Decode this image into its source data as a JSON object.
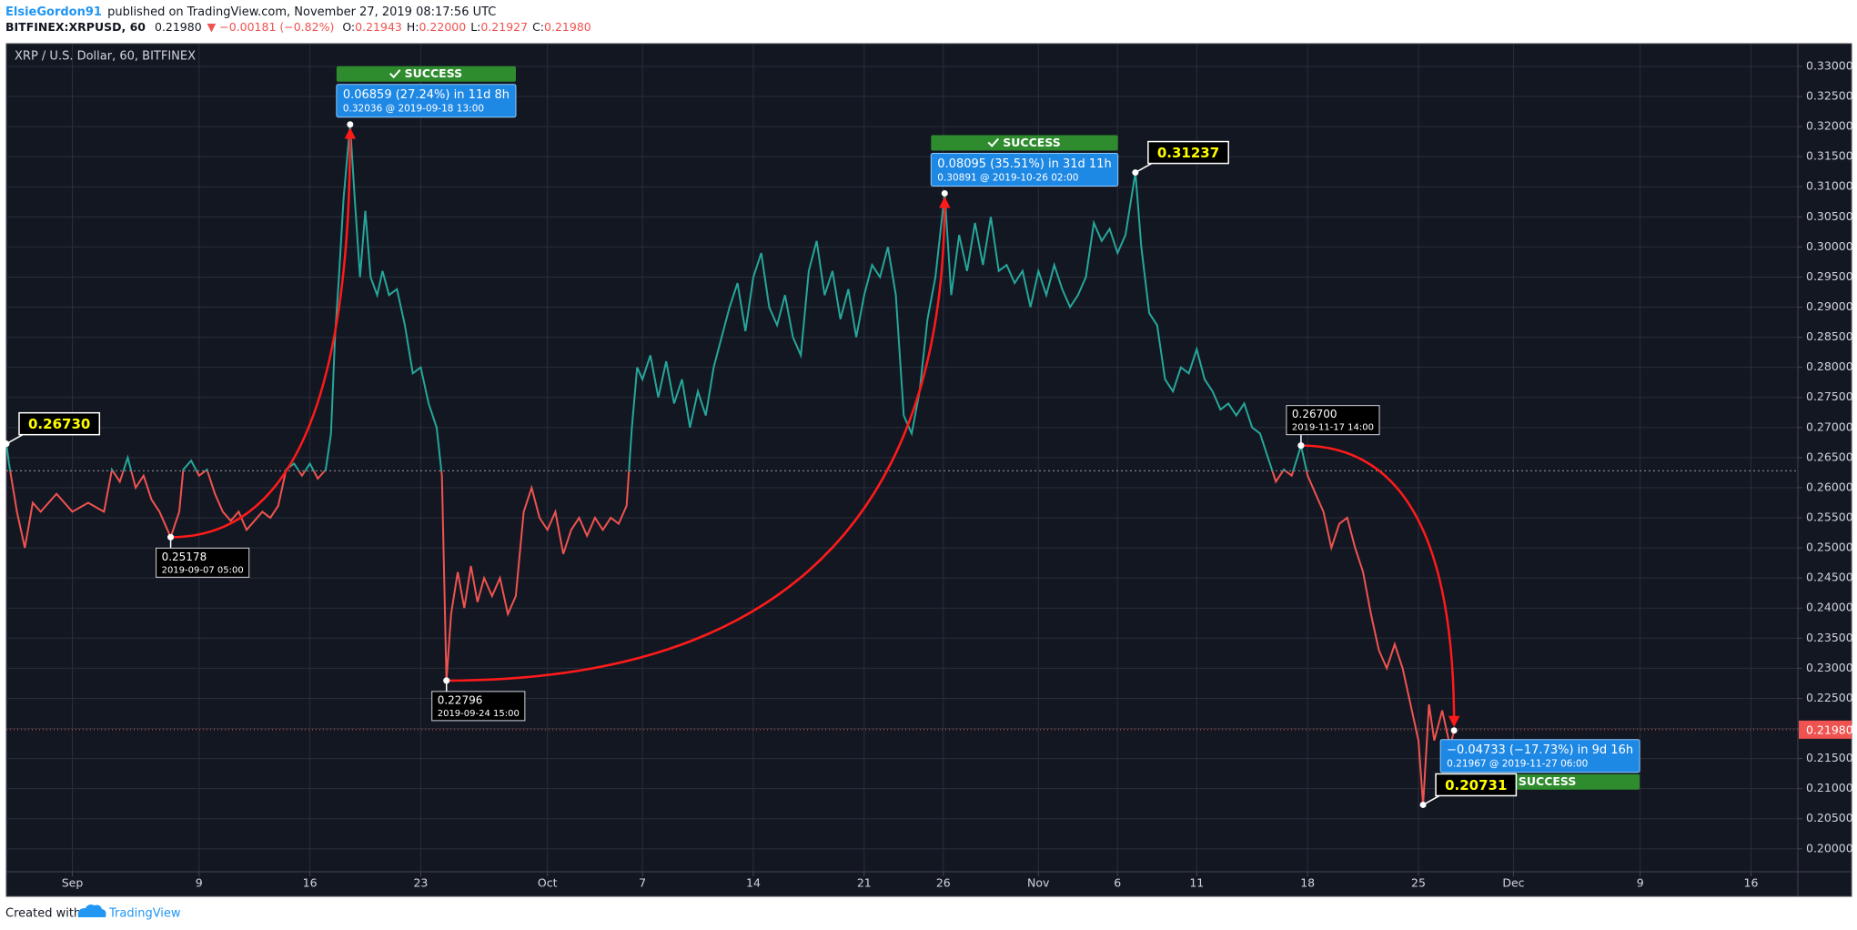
{
  "header": {
    "author": "ElsieGordon91",
    "published": "published on TradingView.com, November 27, 2019 08:17:56 UTC",
    "symbol": "BITFINEX:XRPUSD, 60",
    "last": "0.21980",
    "change": "▼ −0.00181 (−0.82%)",
    "ohlc": [
      {
        "label": "O:",
        "value": "0.21943"
      },
      {
        "label": "H:",
        "value": "0.22000"
      },
      {
        "label": "L:",
        "value": "0.21927"
      },
      {
        "label": "C:",
        "value": "0.21980"
      }
    ]
  },
  "footer": {
    "text": "Created with",
    "brand": "TradingView"
  },
  "chart_data": {
    "type": "line",
    "title": "XRP / U.S. Dollar, 60, BITFINEX",
    "color_above": "#26a69a",
    "color_below": "#ef5350",
    "baseline": 0.2628,
    "grid": true,
    "xlim": [
      "2019-08-27 20:00",
      "2019-12-18 23:00"
    ],
    "xticks": [
      {
        "value": "2019-09-01 00:00",
        "label": "Sep"
      },
      {
        "value": "2019-09-09 00:00",
        "label": "9"
      },
      {
        "value": "2019-09-16 00:00",
        "label": "16"
      },
      {
        "value": "2019-09-23 00:00",
        "label": "23"
      },
      {
        "value": "2019-10-01 00:00",
        "label": "Oct"
      },
      {
        "value": "2019-10-07 00:00",
        "label": "7"
      },
      {
        "value": "2019-10-14 00:00",
        "label": "14"
      },
      {
        "value": "2019-10-21 00:00",
        "label": "21"
      },
      {
        "value": "2019-10-26 00:00",
        "label": "26"
      },
      {
        "value": "2019-11-01 00:00",
        "label": "Nov"
      },
      {
        "value": "2019-11-06 00:00",
        "label": "6"
      },
      {
        "value": "2019-11-11 00:00",
        "label": "11"
      },
      {
        "value": "2019-11-18 00:00",
        "label": "18"
      },
      {
        "value": "2019-11-25 00:00",
        "label": "25"
      },
      {
        "value": "2019-12-01 00:00",
        "label": "Dec"
      },
      {
        "value": "2019-12-09 00:00",
        "label": "9"
      },
      {
        "value": "2019-12-16 00:00",
        "label": "16"
      }
    ],
    "ylim": [
      0.19619,
      0.33317
    ],
    "yticks": [
      {
        "value": 0.2,
        "label": "0.20000"
      },
      {
        "value": 0.205,
        "label": "0.20500"
      },
      {
        "value": 0.21,
        "label": "0.21000"
      },
      {
        "value": 0.215,
        "label": "0.21500"
      },
      {
        "value": 0.22,
        "label": "0.22000"
      },
      {
        "value": 0.225,
        "label": "0.22500"
      },
      {
        "value": 0.23,
        "label": "0.23000"
      },
      {
        "value": 0.235,
        "label": "0.23500"
      },
      {
        "value": 0.24,
        "label": "0.24000"
      },
      {
        "value": 0.245,
        "label": "0.24500"
      },
      {
        "value": 0.25,
        "label": "0.25000"
      },
      {
        "value": 0.255,
        "label": "0.25500"
      },
      {
        "value": 0.26,
        "label": "0.26000"
      },
      {
        "value": 0.265,
        "label": "0.26500"
      },
      {
        "value": 0.27,
        "label": "0.27000"
      },
      {
        "value": 0.275,
        "label": "0.27500"
      },
      {
        "value": 0.28,
        "label": "0.28000"
      },
      {
        "value": 0.285,
        "label": "0.28500"
      },
      {
        "value": 0.29,
        "label": "0.29000"
      },
      {
        "value": 0.295,
        "label": "0.29500"
      },
      {
        "value": 0.3,
        "label": "0.30000"
      },
      {
        "value": 0.305,
        "label": "0.30500"
      },
      {
        "value": 0.31,
        "label": "0.31000"
      },
      {
        "value": 0.315,
        "label": "0.31500"
      },
      {
        "value": 0.32,
        "label": "0.32000"
      },
      {
        "value": 0.325,
        "label": "0.32500"
      },
      {
        "value": 0.33,
        "label": "0.33000"
      }
    ],
    "last_price": {
      "value": 0.2198,
      "label": "0.21980",
      "color": "#ef5350"
    },
    "x": [
      "2019-08-27 20:00",
      "2019-08-28 00:00",
      "2019-08-28 12:00",
      "2019-08-29 00:00",
      "2019-08-29 12:00",
      "2019-08-30 00:00",
      "2019-08-31 00:00",
      "2019-09-01 00:00",
      "2019-09-02 00:00",
      "2019-09-03 00:00",
      "2019-09-03 12:00",
      "2019-09-04 00:00",
      "2019-09-04 12:00",
      "2019-09-05 00:00",
      "2019-09-05 12:00",
      "2019-09-06 00:00",
      "2019-09-06 12:00",
      "2019-09-07 05:00",
      "2019-09-07 18:00",
      "2019-09-08 00:00",
      "2019-09-08 12:00",
      "2019-09-09 00:00",
      "2019-09-09 12:00",
      "2019-09-10 00:00",
      "2019-09-10 12:00",
      "2019-09-11 00:00",
      "2019-09-11 12:00",
      "2019-09-12 00:00",
      "2019-09-12 12:00",
      "2019-09-13 00:00",
      "2019-09-13 12:00",
      "2019-09-14 00:00",
      "2019-09-14 12:00",
      "2019-09-15 00:00",
      "2019-09-15 12:00",
      "2019-09-16 00:00",
      "2019-09-16 12:00",
      "2019-09-17 00:00",
      "2019-09-17 08:00",
      "2019-09-17 14:00",
      "2019-09-17 20:00",
      "2019-09-18 03:00",
      "2019-09-18 13:00",
      "2019-09-18 20:00",
      "2019-09-19 04:00",
      "2019-09-19 12:00",
      "2019-09-19 20:00",
      "2019-09-20 06:00",
      "2019-09-20 14:00",
      "2019-09-21 00:00",
      "2019-09-21 12:00",
      "2019-09-22 00:00",
      "2019-09-22 12:00",
      "2019-09-23 00:00",
      "2019-09-23 12:00",
      "2019-09-24 00:00",
      "2019-09-24 08:00",
      "2019-09-24 15:00",
      "2019-09-24 22:00",
      "2019-09-25 08:00",
      "2019-09-25 18:00",
      "2019-09-26 04:00",
      "2019-09-26 14:00",
      "2019-09-27 00:00",
      "2019-09-27 12:00",
      "2019-09-28 00:00",
      "2019-09-28 12:00",
      "2019-09-29 00:00",
      "2019-09-29 12:00",
      "2019-09-30 00:00",
      "2019-09-30 12:00",
      "2019-10-01 00:00",
      "2019-10-01 12:00",
      "2019-10-02 00:00",
      "2019-10-02 12:00",
      "2019-10-03 00:00",
      "2019-10-03 12:00",
      "2019-10-04 00:00",
      "2019-10-04 12:00",
      "2019-10-05 00:00",
      "2019-10-05 12:00",
      "2019-10-06 00:00",
      "2019-10-06 08:00",
      "2019-10-06 16:00",
      "2019-10-07 00:00",
      "2019-10-07 12:00",
      "2019-10-08 00:00",
      "2019-10-08 12:00",
      "2019-10-09 00:00",
      "2019-10-09 12:00",
      "2019-10-10 00:00",
      "2019-10-10 12:00",
      "2019-10-11 00:00",
      "2019-10-11 12:00",
      "2019-10-12 00:00",
      "2019-10-12 12:00",
      "2019-10-13 00:00",
      "2019-10-13 12:00",
      "2019-10-14 00:00",
      "2019-10-14 12:00",
      "2019-10-15 00:00",
      "2019-10-15 12:00",
      "2019-10-16 00:00",
      "2019-10-16 12:00",
      "2019-10-17 00:00",
      "2019-10-17 12:00",
      "2019-10-18 00:00",
      "2019-10-18 12:00",
      "2019-10-19 00:00",
      "2019-10-19 12:00",
      "2019-10-20 00:00",
      "2019-10-20 12:00",
      "2019-10-21 00:00",
      "2019-10-21 12:00",
      "2019-10-22 00:00",
      "2019-10-22 12:00",
      "2019-10-23 00:00",
      "2019-10-23 12:00",
      "2019-10-24 00:00",
      "2019-10-24 12:00",
      "2019-10-25 00:00",
      "2019-10-25 12:00",
      "2019-10-26 02:00",
      "2019-10-26 12:00",
      "2019-10-27 00:00",
      "2019-10-27 12:00",
      "2019-10-28 00:00",
      "2019-10-28 12:00",
      "2019-10-29 00:00",
      "2019-10-29 12:00",
      "2019-10-30 00:00",
      "2019-10-30 12:00",
      "2019-10-31 00:00",
      "2019-10-31 12:00",
      "2019-11-01 00:00",
      "2019-11-01 12:00",
      "2019-11-02 00:00",
      "2019-11-02 12:00",
      "2019-11-03 00:00",
      "2019-11-03 12:00",
      "2019-11-04 00:00",
      "2019-11-04 12:00",
      "2019-11-05 00:00",
      "2019-11-05 12:00",
      "2019-11-06 00:00",
      "2019-11-06 12:00",
      "2019-11-07 03:00",
      "2019-11-07 12:00",
      "2019-11-08 00:00",
      "2019-11-08 12:00",
      "2019-11-09 00:00",
      "2019-11-09 12:00",
      "2019-11-10 00:00",
      "2019-11-10 12:00",
      "2019-11-11 00:00",
      "2019-11-11 12:00",
      "2019-11-12 00:00",
      "2019-11-12 12:00",
      "2019-11-13 00:00",
      "2019-11-13 12:00",
      "2019-11-14 00:00",
      "2019-11-14 12:00",
      "2019-11-15 00:00",
      "2019-11-15 12:00",
      "2019-11-16 00:00",
      "2019-11-16 12:00",
      "2019-11-17 00:00",
      "2019-11-17 14:00",
      "2019-11-18 00:00",
      "2019-11-18 12:00",
      "2019-11-19 00:00",
      "2019-11-19 12:00",
      "2019-11-20 00:00",
      "2019-11-20 12:00",
      "2019-11-21 00:00",
      "2019-11-21 12:00",
      "2019-11-22 00:00",
      "2019-11-22 12:00",
      "2019-11-23 00:00",
      "2019-11-23 12:00",
      "2019-11-24 00:00",
      "2019-11-24 12:00",
      "2019-11-25 00:00",
      "2019-11-25 07:00",
      "2019-11-25 16:00",
      "2019-11-26 00:00",
      "2019-11-26 12:00",
      "2019-11-27 00:00",
      "2019-11-27 06:00",
      "2019-11-27 08:00"
    ],
    "values": [
      0.2673,
      0.264,
      0.256,
      0.25,
      0.2575,
      0.256,
      0.259,
      0.256,
      0.2575,
      0.256,
      0.263,
      0.261,
      0.265,
      0.26,
      0.262,
      0.258,
      0.256,
      0.25178,
      0.256,
      0.263,
      0.2645,
      0.262,
      0.263,
      0.259,
      0.256,
      0.2545,
      0.256,
      0.253,
      0.2545,
      0.256,
      0.255,
      0.257,
      0.263,
      0.264,
      0.262,
      0.264,
      0.2615,
      0.263,
      0.269,
      0.285,
      0.295,
      0.308,
      0.32036,
      0.308,
      0.295,
      0.306,
      0.295,
      0.292,
      0.296,
      0.292,
      0.293,
      0.287,
      0.279,
      0.28,
      0.274,
      0.27,
      0.262,
      0.22796,
      0.239,
      0.246,
      0.24,
      0.247,
      0.241,
      0.245,
      0.242,
      0.245,
      0.239,
      0.242,
      0.256,
      0.26,
      0.255,
      0.253,
      0.256,
      0.249,
      0.253,
      0.255,
      0.252,
      0.255,
      0.253,
      0.255,
      0.254,
      0.257,
      0.27,
      0.28,
      0.278,
      0.282,
      0.275,
      0.281,
      0.274,
      0.278,
      0.27,
      0.276,
      0.272,
      0.28,
      0.285,
      0.29,
      0.294,
      0.286,
      0.295,
      0.299,
      0.29,
      0.287,
      0.292,
      0.285,
      0.282,
      0.296,
      0.301,
      0.292,
      0.296,
      0.288,
      0.293,
      0.285,
      0.292,
      0.297,
      0.295,
      0.3,
      0.292,
      0.272,
      0.269,
      0.276,
      0.288,
      0.295,
      0.30891,
      0.292,
      0.302,
      0.296,
      0.304,
      0.297,
      0.305,
      0.296,
      0.297,
      0.294,
      0.296,
      0.29,
      0.296,
      0.292,
      0.297,
      0.293,
      0.29,
      0.292,
      0.295,
      0.304,
      0.301,
      0.303,
      0.299,
      0.302,
      0.31237,
      0.3,
      0.289,
      0.287,
      0.278,
      0.276,
      0.28,
      0.279,
      0.283,
      0.278,
      0.276,
      0.273,
      0.274,
      0.272,
      0.274,
      0.27,
      0.269,
      0.265,
      0.261,
      0.263,
      0.262,
      0.267,
      0.262,
      0.259,
      0.256,
      0.25,
      0.254,
      0.255,
      0.25,
      0.246,
      0.239,
      0.233,
      0.23,
      0.234,
      0.23,
      0.224,
      0.218,
      0.20731,
      0.224,
      0.218,
      0.223,
      0.217,
      0.21967,
      0.2198
    ],
    "callouts": [
      {
        "x": "2019-08-27 20:00",
        "value": 0.2673,
        "label": "0.26730",
        "side": "above"
      },
      {
        "x": "2019-11-07 03:00",
        "value": 0.31237,
        "label": "0.31237",
        "side": "above"
      },
      {
        "x": "2019-11-25 07:00",
        "value": 0.20731,
        "label": "0.20731",
        "side": "above"
      },
      {
        "x": "2019-09-07 05:00",
        "value": 0.25178,
        "label": "0.25178",
        "sublabel": "2019-09-07 05:00",
        "side": "below"
      },
      {
        "x": "2019-09-24 15:00",
        "value": 0.22796,
        "label": "0.22796",
        "sublabel": "2019-09-24 15:00",
        "side": "below"
      },
      {
        "x": "2019-11-17 14:00",
        "value": 0.267,
        "label": "0.26700",
        "sublabel": "2019-11-17 14:00",
        "side": "above"
      }
    ],
    "projections": [
      {
        "from_x": "2019-09-07 05:00",
        "from_value": 0.25178,
        "to_x": "2019-09-18 13:00",
        "to_value": 0.32036,
        "change": "0.06859 (27.24%) in 11d 8h",
        "target": "0.32036 @ 2019-09-18  13:00",
        "status": "SUCCESS"
      },
      {
        "from_x": "2019-09-24 15:00",
        "from_value": 0.22796,
        "to_x": "2019-10-26 02:00",
        "to_value": 0.30891,
        "change": "0.08095 (35.51%) in 31d 11h",
        "target": "0.30891 @ 2019-10-26  02:00",
        "status": "SUCCESS"
      },
      {
        "from_x": "2019-11-17 14:00",
        "from_value": 0.267,
        "to_x": "2019-11-27 06:00",
        "to_value": 0.21967,
        "change": "−0.04733 (−17.73%) in 9d 16h",
        "target": "0.21967 @ 2019-11-27  06:00",
        "status": "SUCCESS"
      }
    ]
  }
}
